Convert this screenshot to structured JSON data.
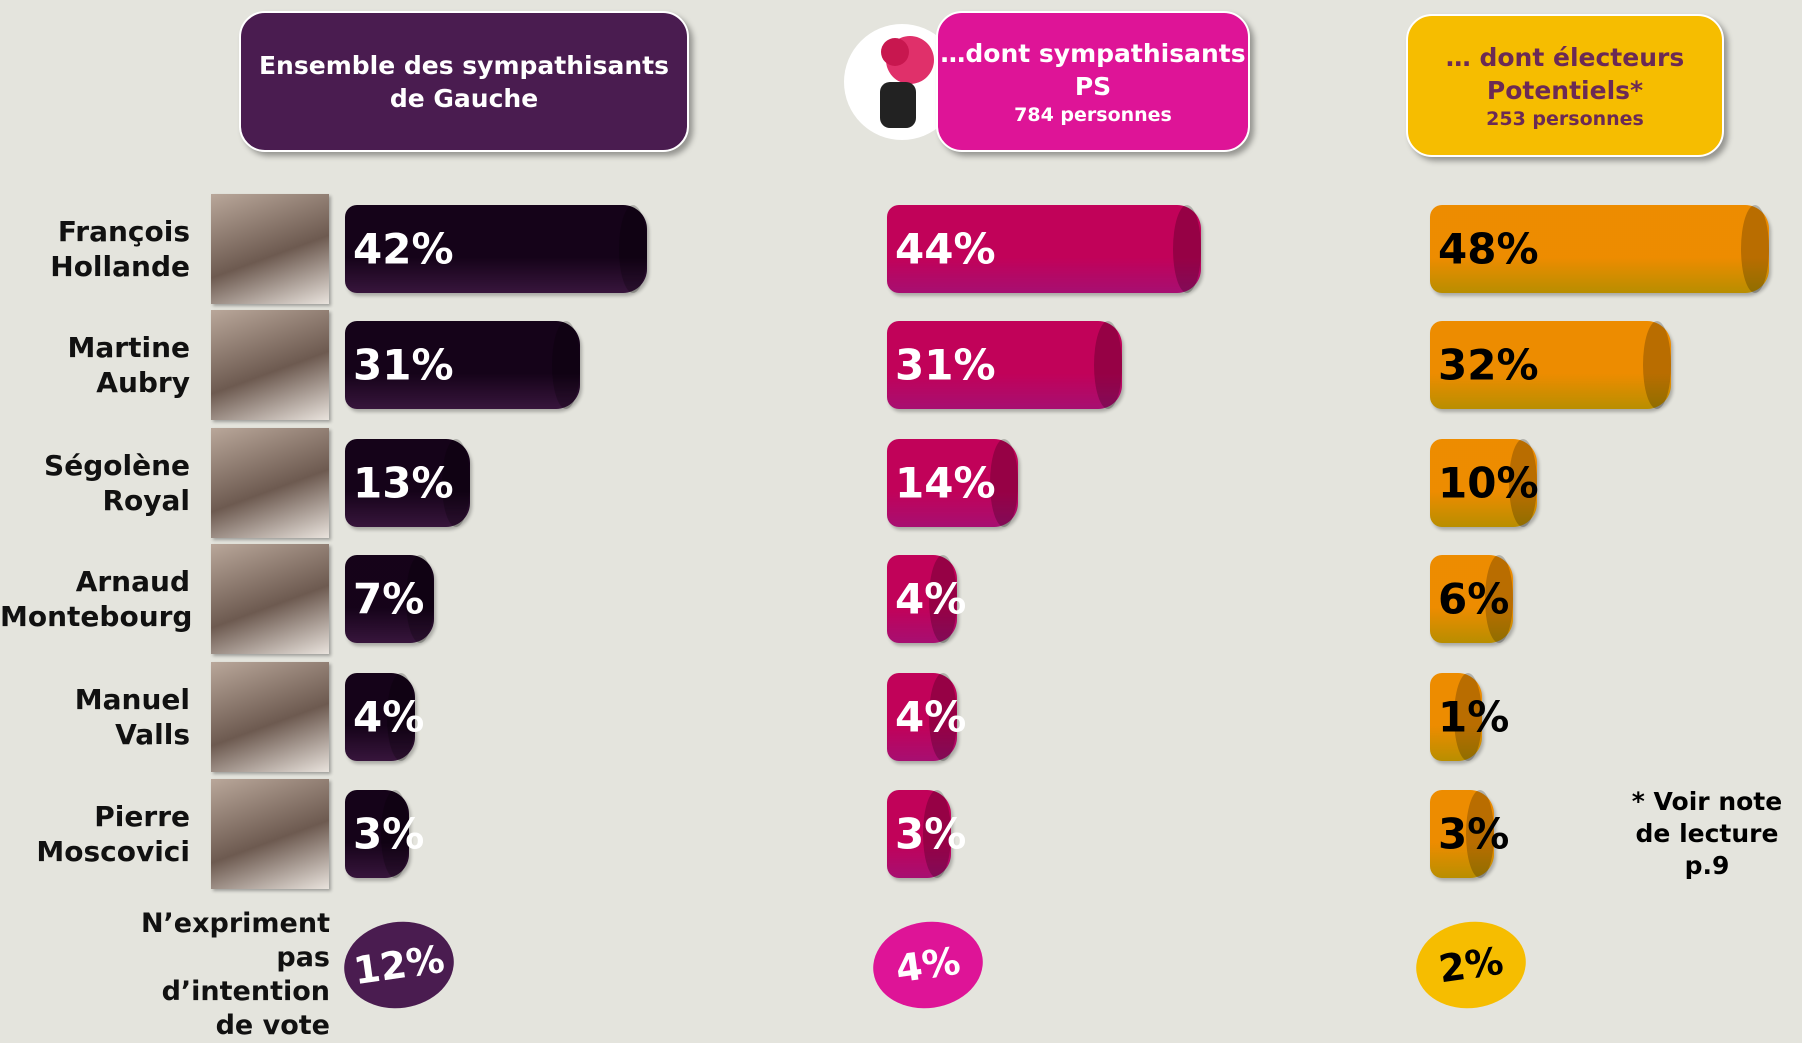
{
  "chart_data": {
    "type": "bar",
    "categories": [
      "François Hollande",
      "Martine Aubry",
      "Ségolène Royal",
      "Arnaud Montebourg",
      "Manuel Valls",
      "Pierre Moscovici"
    ],
    "series": [
      {
        "name": "Ensemble des sympathisants de Gauche",
        "color": "#4a1c50",
        "text_color": "#ffffff",
        "values": [
          42,
          31,
          13,
          7,
          4,
          3
        ],
        "value_labels": [
          "42%",
          "31%",
          "13%",
          "7%",
          "4%",
          "3%"
        ],
        "no_intention_value": 12,
        "no_intention_label": "12%"
      },
      {
        "name": "…dont sympathisants PS",
        "subtitle": "784 personnes",
        "color": "#de1497",
        "text_color": "#ffffff",
        "values": [
          44,
          31,
          14,
          4,
          4,
          3
        ],
        "value_labels": [
          "44%",
          "31%",
          "14%",
          "4%",
          "4%",
          "3%"
        ],
        "no_intention_value": 4,
        "no_intention_label": "4%"
      },
      {
        "name": "… dont électeurs Potentiels*",
        "subtitle": "253 personnes",
        "color": "#f6bd00",
        "text_color": "#000000",
        "values": [
          48,
          32,
          10,
          6,
          1,
          3
        ],
        "value_labels": [
          "48%",
          "32%",
          "10%",
          "6%",
          "1%",
          "3%"
        ],
        "no_intention_value": 2,
        "no_intention_label": "2%"
      }
    ],
    "no_intention_category": "N’expriment pas d’intention de vote",
    "footnote": "* Voir note de lecture p.9"
  }
}
